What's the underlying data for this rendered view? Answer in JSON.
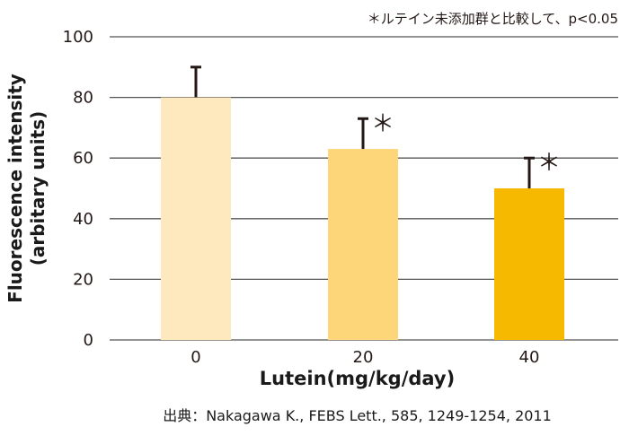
{
  "chart_data": {
    "type": "bar",
    "annotation_note": "＊ルテイン未添加群と比較して、p<0.05",
    "xlabel": "Lutein(mg/kg/day)",
    "ylabel_line1": "Fluorescence intensity",
    "ylabel_line2": "(arbitary units)",
    "source": "出典：Nakagawa K., FEBS Lett., 585, 1249-1254, 2011",
    "categories": [
      "0",
      "20",
      "40"
    ],
    "values": [
      80,
      63,
      50
    ],
    "errors": [
      10,
      10,
      10
    ],
    "significance_marks": [
      "",
      "＊",
      "＊"
    ],
    "bar_colors": [
      "#fde9bd",
      "#fdd67a",
      "#f7b900"
    ],
    "ylim": [
      0,
      100
    ],
    "yticks": [
      0,
      20,
      40,
      60,
      80,
      100
    ],
    "grid": true,
    "gridline_color": "#555555",
    "error_bar_color": "#231815"
  }
}
